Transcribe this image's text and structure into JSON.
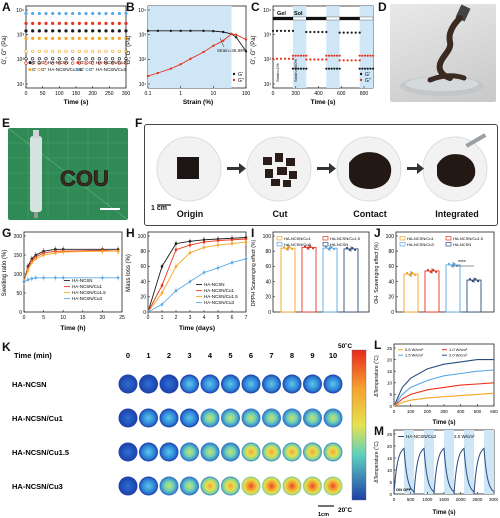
{
  "panels": {
    "A": {
      "letter": "A",
      "ylabel": "G', G'' (Pa)",
      "xlabel": "Time (s)",
      "yticks": [
        "10⁴",
        "10³",
        "10²",
        "10¹"
      ],
      "xticks": [
        "0",
        "50",
        "100",
        "150",
        "200",
        "250",
        "300"
      ],
      "legend": [
        "G'",
        "G''",
        "HA-NCSN",
        "G'",
        "G''",
        "HA-NCSN/Cu1",
        "G'",
        "G''",
        "HA-NCSN/Cu1.5",
        "G'",
        "G''",
        "HA-NCSN/Cu3"
      ]
    },
    "B": {
      "letter": "B",
      "ylabel": "G', G'' (Pa)",
      "xlabel": "Strain (%)",
      "xticks": [
        "0.1",
        "1",
        "10",
        "100"
      ],
      "yticks": [
        "10⁴",
        "10³",
        "10²",
        "10¹"
      ],
      "annotation": "Strain=35.89%",
      "legend": [
        "G'",
        "G''"
      ]
    },
    "C": {
      "letter": "C",
      "ylabel": "G', G'' (Pa)",
      "xlabel": "Time (s)",
      "xticks": [
        "0",
        "200",
        "400",
        "600",
        "800"
      ],
      "yticks": [
        "10⁴",
        "10³",
        "10²",
        "10¹"
      ],
      "gel_label": "Gel",
      "sol_label": "Sol",
      "strain1": "Strain=1%",
      "strain2": "Strain=300%",
      "legend": [
        "G'",
        "G''"
      ]
    },
    "D": {
      "letter": "D"
    },
    "E": {
      "letter": "E",
      "text": "COU"
    },
    "F": {
      "letter": "F",
      "labels": [
        "Origin",
        "Cut",
        "Contact",
        "Integrated"
      ],
      "scale": "1 cm"
    },
    "G": {
      "letter": "G",
      "ylabel": "Swelling ratio (%)",
      "xlabel": "Time (h)",
      "xticks": [
        "0",
        "5",
        "10",
        "15",
        "20",
        "25"
      ],
      "yticks": [
        "0",
        "50",
        "100",
        "150",
        "200"
      ],
      "legend": [
        "HA-NCSN",
        "HA-NCSN/Cu1",
        "HA-NCSN/Cu1.5",
        "HA-NCSN/Cu3"
      ]
    },
    "H": {
      "letter": "H",
      "ylabel": "Mass loss (%)",
      "xlabel": "Time (days)",
      "xticks": [
        "0",
        "1",
        "2",
        "3",
        "4",
        "5",
        "6",
        "7"
      ],
      "yticks": [
        "0",
        "20",
        "40",
        "60",
        "80",
        "100"
      ],
      "legend": [
        "HA-NCSN",
        "HA-NCSN/Cu1",
        "HA-NCSN/Cu1.5",
        "HA-NCSN/Cu3"
      ]
    },
    "I": {
      "letter": "I",
      "ylabel": "DPPH Scavenging effect (%)",
      "yticks": [
        "0",
        "20",
        "40",
        "60",
        "80",
        "100"
      ],
      "legend": [
        "HA-NCSN/Cu1",
        "HA-NCSN/Cu1.5",
        "HA-NCSN/Cu3",
        "HA-NCSN"
      ]
    },
    "J": {
      "letter": "J",
      "ylabel": "OH· Scavenging effect (%)",
      "yticks": [
        "0",
        "20",
        "40",
        "60",
        "80",
        "100"
      ],
      "legend": [
        "HA-NCSN/Cu1",
        "HA-NCSN/Cu1.5",
        "HA-NCSN/Cu3",
        "HA-NCSN"
      ],
      "sig": "****"
    },
    "K": {
      "letter": "K",
      "time_label": "Time (min)",
      "times": [
        "0",
        "1",
        "2",
        "3",
        "4",
        "5",
        "6",
        "7",
        "8",
        "9",
        "10"
      ],
      "rows": [
        "HA-NCSN",
        "HA-NCSN/Cu1",
        "HA-NCSN/Cu1.5",
        "HA-NCSN/Cu3"
      ],
      "scale_max": "50˚C",
      "scale_min": "20˚C",
      "scalebar": "1cm"
    },
    "L": {
      "letter": "L",
      "ylabel": "ΔTemperature (˚C)",
      "xlabel": "Time (s)",
      "xticks": [
        "0",
        "100",
        "200",
        "300",
        "400",
        "500",
        "600"
      ],
      "yticks": [
        "0",
        "5",
        "10",
        "15",
        "20",
        "25"
      ],
      "legend": [
        "0.5 W/cm²",
        "1.0 W/cm²",
        "1.5 W/cm²",
        "2.0 W/cm²"
      ]
    },
    "M": {
      "letter": "M",
      "ylabel": "ΔTemperature (˚C)",
      "xlabel": "Time (s)",
      "xticks": [
        "0",
        "500",
        "1000",
        "1500",
        "2000",
        "2500",
        "3000"
      ],
      "yticks": [
        "0",
        "5",
        "10",
        "15",
        "20",
        "25"
      ],
      "legend_name": "HA-NCSN/Cu3",
      "legend_power": "2.0 W/cm²",
      "on_off": "ON  OFF"
    }
  },
  "colors": {
    "black": "#1a1a1a",
    "red": "#e8331b",
    "orange": "#f5a623",
    "blue": "#5aa9e6",
    "navy": "#2b4c7e",
    "shade": "#cfe6f7"
  },
  "chart_data": [
    {
      "id": "A",
      "type": "scatter",
      "x": [
        0,
        20,
        40,
        60,
        80,
        100,
        120,
        140,
        160,
        180,
        200,
        220,
        240,
        260,
        280,
        300
      ],
      "series": [
        {
          "name": "HA-NCSN/Cu3 G'",
          "values": [
            10000,
            10000,
            10000,
            10000,
            10000,
            10000,
            10000,
            10000,
            10000,
            10000,
            10000,
            10000,
            10000,
            10000,
            10000,
            10000
          ]
        },
        {
          "name": "HA-NCSN/Cu1.5 G'",
          "values": [
            4000,
            4000,
            4000,
            4000,
            4000,
            4000,
            4000,
            4000,
            4000,
            4000,
            4000,
            4000,
            4000,
            4000,
            4000,
            4000
          ]
        },
        {
          "name": "HA-NCSN/Cu1 G'",
          "values": [
            2000,
            2000,
            2000,
            2000,
            2000,
            2000,
            2000,
            2000,
            2000,
            2000,
            2000,
            2000,
            2000,
            2000,
            2000,
            2000
          ]
        },
        {
          "name": "HA-NCSN G'",
          "values": [
            1000,
            1000,
            1000,
            1000,
            1000,
            1000,
            1000,
            1000,
            1000,
            1000,
            1000,
            1000,
            1000,
            1000,
            1000,
            1000
          ]
        },
        {
          "name": "HA-NCSN G''",
          "values": [
            300,
            300,
            300,
            300,
            300,
            300,
            300,
            300,
            300,
            300,
            300,
            300,
            300,
            300,
            300,
            300
          ]
        },
        {
          "name": "HA-NCSN/Cu1 G''",
          "values": [
            150,
            150,
            150,
            150,
            150,
            150,
            150,
            150,
            150,
            150,
            150,
            150,
            150,
            150,
            150,
            150
          ]
        },
        {
          "name": "HA-NCSN/Cu1.5 G''",
          "values": [
            100,
            100,
            100,
            100,
            100,
            100,
            100,
            100,
            100,
            100,
            100,
            100,
            100,
            100,
            100,
            100
          ]
        }
      ],
      "xlim": [
        0,
        300
      ],
      "ylim_log": [
        10,
        20000
      ]
    },
    {
      "id": "B",
      "type": "line",
      "x": [
        0.1,
        0.2,
        0.5,
        1,
        2,
        5,
        10,
        20,
        35.89,
        50,
        100
      ],
      "series": [
        {
          "name": "G'",
          "values": [
            2000,
            2000,
            2000,
            2000,
            2000,
            2000,
            1950,
            1800,
            1500,
            1100,
            300
          ]
        },
        {
          "name": "G''",
          "values": [
            30,
            40,
            60,
            90,
            150,
            280,
            500,
            800,
            1500,
            1400,
            900
          ]
        }
      ],
      "annotation_x": 35.89
    },
    {
      "id": "C",
      "type": "line",
      "segments": [
        {
          "range": [
            0,
            180
          ],
          "Gp": 2000,
          "Gpp": 150
        },
        {
          "range": [
            180,
            300
          ],
          "Gp": 60,
          "Gpp": 200
        },
        {
          "range": [
            300,
            480
          ],
          "Gp": 1800,
          "Gpp": 140
        },
        {
          "range": [
            480,
            600
          ],
          "Gp": 60,
          "Gpp": 200
        },
        {
          "range": [
            600,
            780
          ],
          "Gp": 1700,
          "Gpp": 130
        },
        {
          "range": [
            780,
            900
          ],
          "Gp": 60,
          "Gpp": 200
        }
      ]
    },
    {
      "id": "G",
      "type": "line",
      "x": [
        0,
        1,
        2,
        3,
        5,
        8,
        10,
        20,
        24
      ],
      "series": [
        {
          "name": "HA-NCSN",
          "values": [
            80,
            120,
            140,
            150,
            160,
            165,
            165,
            165,
            165
          ]
        },
        {
          "name": "HA-NCSN/Cu1",
          "values": [
            80,
            115,
            135,
            145,
            155,
            160,
            160,
            162,
            160
          ]
        },
        {
          "name": "HA-NCSN/Cu1.5",
          "values": [
            80,
            110,
            130,
            140,
            150,
            155,
            158,
            160,
            160
          ]
        },
        {
          "name": "HA-NCSN/Cu3",
          "values": [
            80,
            85,
            88,
            90,
            90,
            90,
            90,
            90,
            90
          ]
        }
      ]
    },
    {
      "id": "H",
      "type": "line",
      "x": [
        0,
        1,
        2,
        3,
        4,
        5,
        6,
        7
      ],
      "series": [
        {
          "name": "HA-NCSN",
          "values": [
            0,
            60,
            90,
            93,
            95,
            96,
            97,
            98
          ]
        },
        {
          "name": "HA-NCSN/Cu1",
          "values": [
            0,
            35,
            82,
            88,
            92,
            94,
            95,
            96
          ]
        },
        {
          "name": "HA-NCSN/Cu1.5",
          "values": [
            0,
            25,
            60,
            78,
            85,
            88,
            90,
            92
          ]
        },
        {
          "name": "HA-NCSN/Cu3",
          "values": [
            0,
            10,
            28,
            40,
            52,
            58,
            65,
            70
          ]
        }
      ]
    },
    {
      "id": "I",
      "type": "bar",
      "categories": [
        "HA-NCSN/Cu1",
        "HA-NCSN/Cu1.5",
        "HA-NCSN/Cu3",
        "HA-NCSN"
      ],
      "values": [
        84,
        85,
        84,
        83
      ]
    },
    {
      "id": "J",
      "type": "bar",
      "categories": [
        "HA-NCSN/Cu1",
        "HA-NCSN/Cu1.5",
        "HA-NCSN/Cu3",
        "HA-NCSN"
      ],
      "values": [
        50,
        54,
        62,
        42
      ]
    },
    {
      "id": "L",
      "type": "line",
      "x": [
        0,
        50,
        100,
        200,
        300,
        400,
        500,
        600
      ],
      "series": [
        {
          "name": "2.0 W/cm²",
          "values": [
            0,
            8,
            12,
            16,
            18,
            19,
            20,
            20
          ]
        },
        {
          "name": "1.5 W/cm²",
          "values": [
            0,
            5,
            8,
            11,
            13,
            14,
            15,
            15.5
          ]
        },
        {
          "name": "1.0 W/cm²",
          "values": [
            0,
            3,
            5,
            7,
            8,
            9,
            9.5,
            10
          ]
        },
        {
          "name": "0.5 W/cm²",
          "values": [
            0,
            1.5,
            2.5,
            3.5,
            4,
            4.5,
            5,
            5.5
          ]
        }
      ]
    },
    {
      "id": "M",
      "type": "line",
      "cycles": 5,
      "period": 600,
      "peak": 20
    }
  ]
}
